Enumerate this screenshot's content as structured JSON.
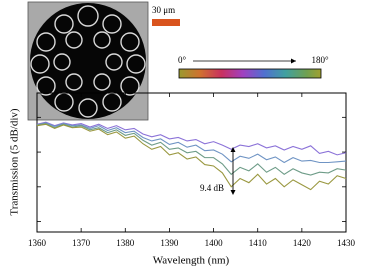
{
  "chart_data": {
    "type": "line",
    "ylabel": "Transmission (5 dB/div)",
    "xlabel": "Wavelength (nm)",
    "annotation": "9.4 dB",
    "scale_bar_label": "30 μm",
    "angle_start_label": "0°",
    "angle_end_label": "180°",
    "x": [
      1360,
      1362,
      1364,
      1366,
      1368,
      1370,
      1372,
      1374,
      1376,
      1378,
      1380,
      1382,
      1384,
      1386,
      1388,
      1390,
      1392,
      1394,
      1396,
      1398,
      1400,
      1402,
      1404,
      1406,
      1408,
      1410,
      1412,
      1414,
      1416,
      1418,
      1420,
      1422,
      1424,
      1426,
      1428,
      1430
    ],
    "series": [
      {
        "color": "#8b72d8",
        "values": [
          14.0,
          14.3,
          13.8,
          14.2,
          13.9,
          14.1,
          13.6,
          14.0,
          13.4,
          13.8,
          13.2,
          13.4,
          12.6,
          12.2,
          12.5,
          11.9,
          12.1,
          11.6,
          11.8,
          11.2,
          11.5,
          11.0,
          10.4,
          11.0,
          10.8,
          11.2,
          10.6,
          10.9,
          10.3,
          10.8,
          10.4,
          10.9,
          9.8,
          10.1,
          9.6,
          9.9
        ]
      },
      {
        "color": "#6f94c4",
        "values": [
          13.9,
          14.2,
          13.7,
          14.1,
          13.8,
          13.9,
          13.4,
          13.8,
          13.1,
          13.5,
          12.8,
          13.0,
          12.1,
          11.6,
          11.9,
          11.1,
          11.4,
          10.7,
          11.0,
          10.2,
          10.3,
          9.7,
          8.6,
          9.4,
          9.1,
          9.7,
          8.9,
          9.3,
          8.5,
          9.2,
          8.7,
          8.8,
          8.5,
          8.5,
          8.6,
          8.7
        ]
      },
      {
        "color": "#6e9c88",
        "values": [
          13.9,
          14.1,
          13.5,
          14.0,
          13.6,
          13.8,
          13.2,
          13.5,
          12.8,
          13.2,
          12.4,
          12.7,
          11.7,
          11.0,
          11.4,
          10.4,
          10.6,
          9.9,
          10.1,
          9.2,
          9.2,
          8.3,
          6.8,
          7.8,
          7.3,
          8.3,
          7.1,
          7.8,
          6.8,
          7.6,
          7.0,
          6.7,
          7.1,
          7.0,
          7.6,
          7.4
        ]
      },
      {
        "color": "#9a9840",
        "values": [
          13.8,
          14.0,
          13.4,
          13.9,
          13.5,
          13.6,
          13.0,
          13.3,
          12.5,
          12.9,
          12.0,
          12.3,
          11.2,
          10.4,
          10.8,
          9.6,
          9.9,
          9.0,
          9.3,
          8.2,
          8.0,
          7.0,
          5.0,
          6.2,
          5.6,
          6.8,
          5.4,
          6.2,
          5.0,
          6.0,
          5.3,
          4.6,
          5.8,
          5.4,
          6.6,
          6.2
        ]
      }
    ],
    "xlim": [
      1360,
      1430
    ],
    "xticks": [
      1360,
      1370,
      1380,
      1390,
      1400,
      1410,
      1420,
      1430
    ],
    "ylim": [
      -1.5,
      18.5
    ],
    "yticks": [
      0,
      5,
      10,
      15
    ],
    "grid": false
  }
}
